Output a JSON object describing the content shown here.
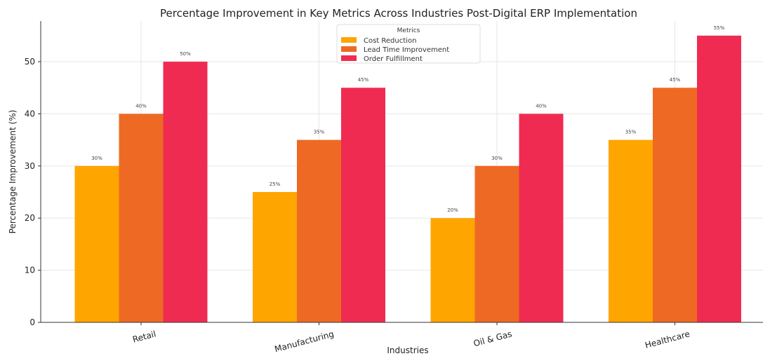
{
  "chart_data": {
    "type": "bar",
    "title": "Percentage Improvement in Key Metrics Across Industries Post-Digital ERP Implementation",
    "xlabel": "Industries",
    "ylabel": "Percentage Improvement (%)",
    "categories": [
      "Retail",
      "Manufacturing",
      "Oil & Gas",
      "Healthcare"
    ],
    "series": [
      {
        "name": "Cost Reduction",
        "values": [
          30,
          25,
          20,
          35
        ],
        "color": "#FFA500"
      },
      {
        "name": "Lead Time Improvement",
        "values": [
          40,
          35,
          30,
          45
        ],
        "color": "#EE6A24"
      },
      {
        "name": "Order Fulfillment",
        "values": [
          50,
          45,
          40,
          55
        ],
        "color": "#F02B52"
      }
    ],
    "data_label_suffix": "%",
    "ylim": [
      0,
      57.8
    ],
    "yticks": [
      0,
      10,
      20,
      30,
      40,
      50
    ],
    "grid": true,
    "legend": {
      "title": "Metrics",
      "placement": "top-center"
    }
  }
}
